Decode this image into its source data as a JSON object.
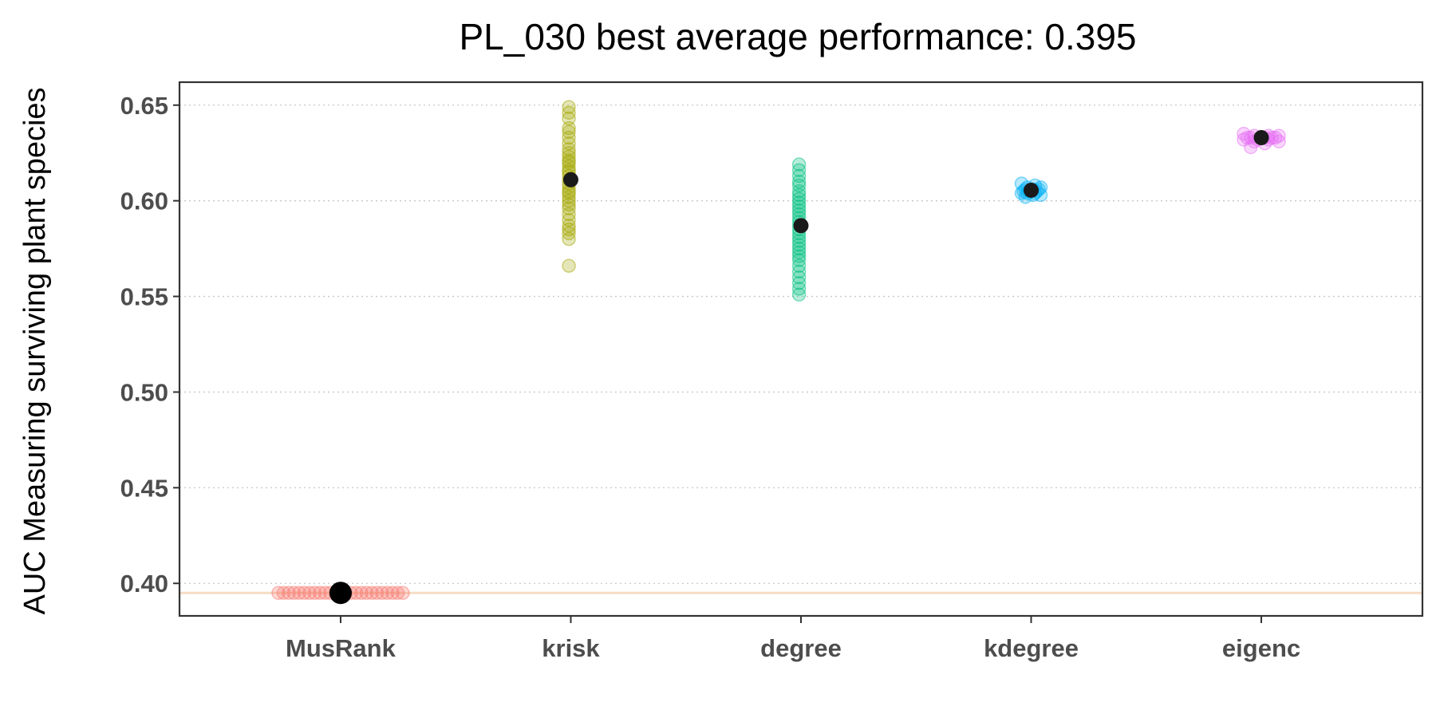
{
  "chart_data": {
    "type": "scatter",
    "title": "PL_030 best average performance: 0.395",
    "xlabel": "",
    "ylabel": "AUC Measuring surviving plant species",
    "ylim": [
      0.383,
      0.662
    ],
    "yticks": [
      "0.40",
      "0.45",
      "0.50",
      "0.55",
      "0.60",
      "0.65"
    ],
    "grid": "horizontal dotted",
    "reference_line": 0.395,
    "colors": {
      "reference_line": "#f5dcc4",
      "grid": "#c8c8c8",
      "mean_point": "#1a1a1a"
    },
    "categories": [
      "MusRank",
      "krisk",
      "degree",
      "kdegree",
      "eigenc"
    ],
    "series": [
      {
        "category": "MusRank",
        "color": "#f8766d",
        "mean": 0.395,
        "values": [
          0.395,
          0.395,
          0.395,
          0.395,
          0.395,
          0.395,
          0.395,
          0.395,
          0.395,
          0.395,
          0.395,
          0.395,
          0.395,
          0.395,
          0.395,
          0.395,
          0.395,
          0.395,
          0.395,
          0.395,
          0.395,
          0.395,
          0.395,
          0.395,
          0.395
        ]
      },
      {
        "category": "krisk",
        "color": "#a3a500",
        "mean": 0.611,
        "values": [
          0.649,
          0.646,
          0.643,
          0.638,
          0.636,
          0.633,
          0.63,
          0.627,
          0.625,
          0.623,
          0.621,
          0.62,
          0.618,
          0.616,
          0.615,
          0.613,
          0.611,
          0.609,
          0.607,
          0.605,
          0.604,
          0.602,
          0.6,
          0.598,
          0.596,
          0.593,
          0.59,
          0.587,
          0.585,
          0.583,
          0.58,
          0.566
        ]
      },
      {
        "category": "degree",
        "color": "#00bf7d",
        "mean": 0.587,
        "values": [
          0.619,
          0.616,
          0.613,
          0.61,
          0.608,
          0.605,
          0.603,
          0.601,
          0.599,
          0.597,
          0.595,
          0.593,
          0.591,
          0.589,
          0.587,
          0.585,
          0.583,
          0.581,
          0.579,
          0.577,
          0.575,
          0.573,
          0.571,
          0.569,
          0.566,
          0.563,
          0.56,
          0.557,
          0.554,
          0.551
        ]
      },
      {
        "category": "kdegree",
        "color": "#00b0f6",
        "mean": 0.6055,
        "values": [
          0.609,
          0.608,
          0.607,
          0.607,
          0.606,
          0.606,
          0.606,
          0.605,
          0.605,
          0.605,
          0.605,
          0.604,
          0.604,
          0.604,
          0.603,
          0.603,
          0.602
        ]
      },
      {
        "category": "eigenc",
        "color": "#e76bf3",
        "mean": 0.633,
        "values": [
          0.635,
          0.634,
          0.634,
          0.634,
          0.633,
          0.633,
          0.633,
          0.633,
          0.633,
          0.633,
          0.632,
          0.632,
          0.632,
          0.631,
          0.631,
          0.63,
          0.628
        ]
      }
    ]
  }
}
